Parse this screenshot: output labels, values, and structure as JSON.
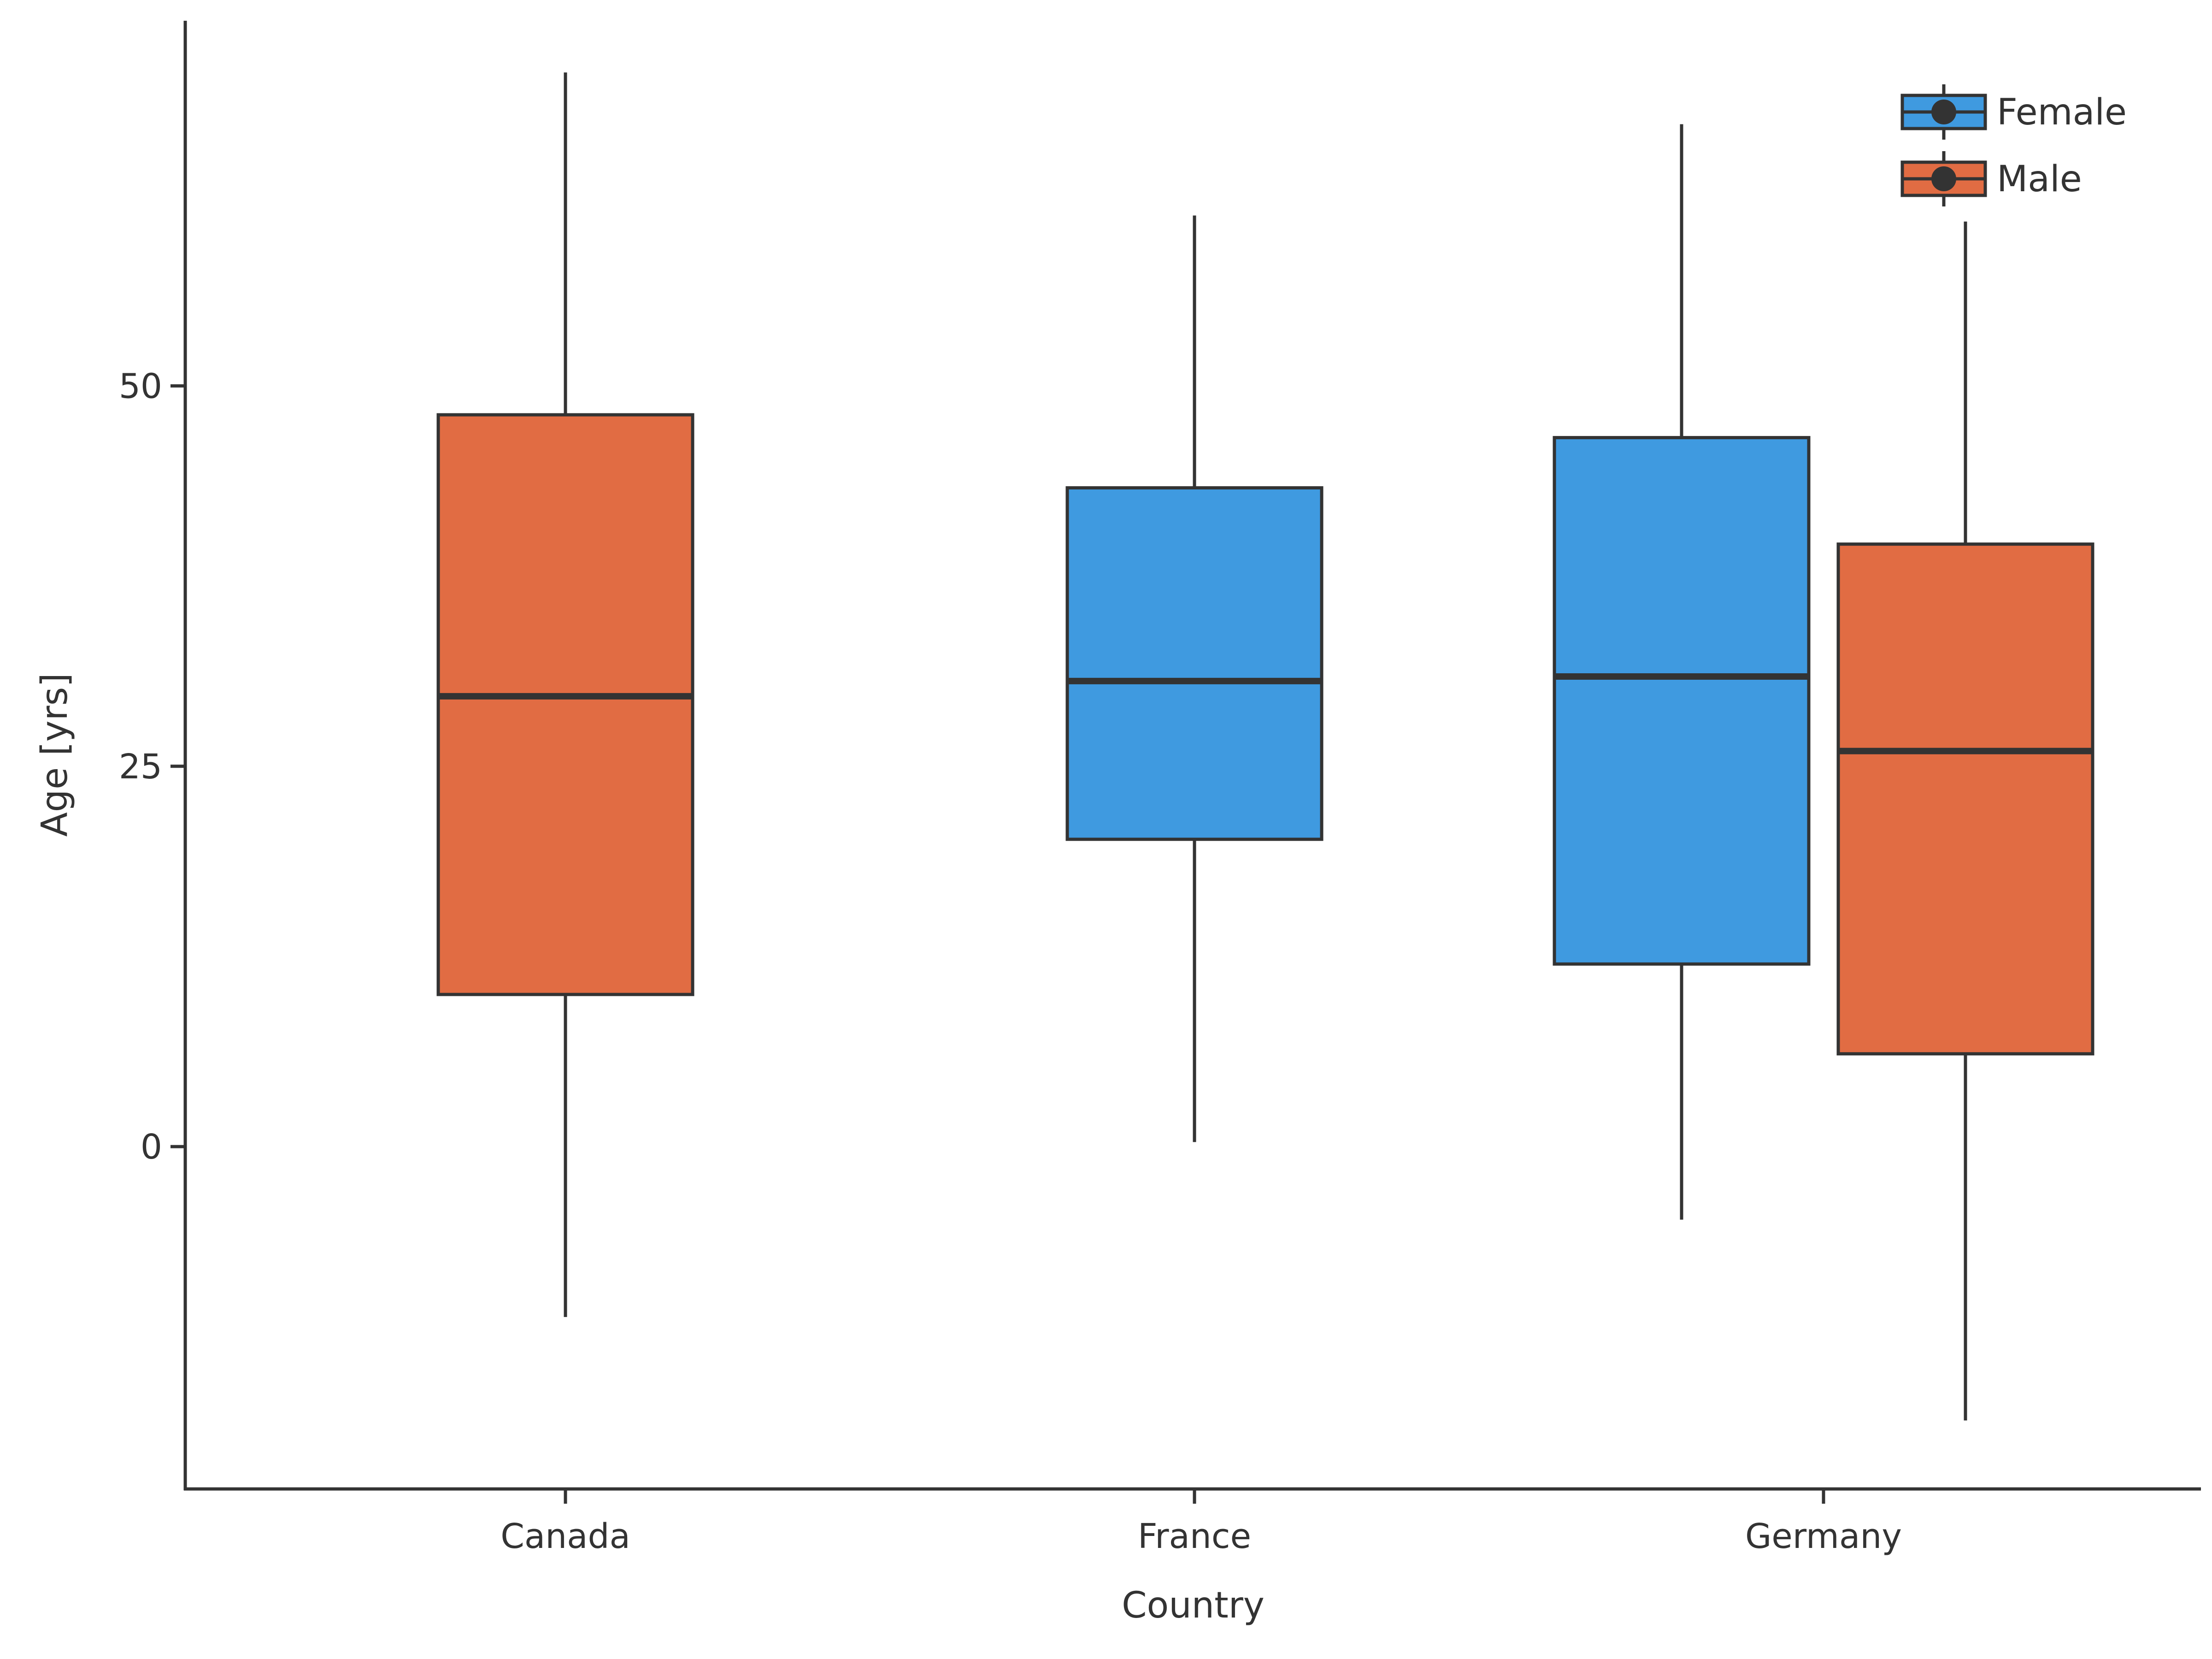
{
  "chart_data": {
    "type": "box",
    "title": "",
    "xlabel": "Country",
    "ylabel": "Age [yrs]",
    "ylim": [
      -22.5,
      74
    ],
    "yticks": [
      0,
      25,
      50
    ],
    "categories": [
      "Canada",
      "France",
      "Germany"
    ],
    "grid": false,
    "legend_position": "top-right",
    "series": [
      {
        "name": "Female",
        "color": "#3f9ae0",
        "boxes": [
          null,
          {
            "category": "France",
            "whisker_low": 0.3,
            "q1": 20.2,
            "median": 30.6,
            "q3": 43.3,
            "whisker_high": 61.2
          },
          {
            "category": "Germany",
            "whisker_low": -4.8,
            "q1": 12.0,
            "median": 30.9,
            "q3": 46.6,
            "whisker_high": 67.2
          }
        ]
      },
      {
        "name": "Male",
        "color": "#e16c43",
        "boxes": [
          {
            "category": "Canada",
            "whisker_low": -11.2,
            "q1": 10.0,
            "median": 29.6,
            "q3": 48.1,
            "whisker_high": 70.6
          },
          null,
          {
            "category": "Germany",
            "whisker_low": -18.0,
            "q1": 6.1,
            "median": 26.0,
            "q3": 39.6,
            "whisker_high": 60.8
          }
        ]
      }
    ],
    "colors": {
      "axis": "#333333",
      "outline": "#333333"
    }
  }
}
